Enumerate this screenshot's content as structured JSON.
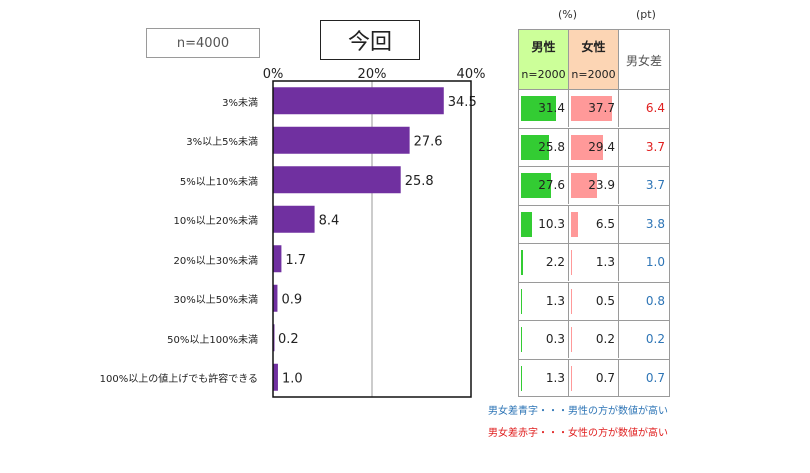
{
  "sample_label": "n=4000",
  "title": "今回",
  "chart_data": {
    "type": "bar",
    "orientation": "horizontal",
    "categories": [
      "3%未満",
      "3%以上5%未満",
      "5%以上10%未満",
      "10%以上20%未満",
      "20%以上30%未満",
      "30%以上50%未満",
      "50%以上100%未満",
      "100%以上の値上げでも許容できる"
    ],
    "values": [
      34.5,
      27.6,
      25.8,
      8.4,
      1.7,
      0.9,
      0.2,
      1.0
    ],
    "value_labels": [
      "34.5",
      "27.6",
      "25.8",
      "8.4",
      "1.7",
      "0.9",
      "0.2",
      "1.0"
    ],
    "xlim": [
      0,
      40
    ],
    "xticks": [
      {
        "value": 0,
        "label": "0%"
      },
      {
        "value": 20,
        "label": "20%"
      },
      {
        "value": 40,
        "label": "40%"
      }
    ],
    "bar_color": "#7030a0",
    "grid": true
  },
  "table": {
    "unit_pct": "(%)",
    "unit_pt": "(pt)",
    "headers": {
      "male": {
        "label": "男性",
        "n": "n=2000",
        "color": "#ccff99"
      },
      "female": {
        "label": "女性",
        "n": "n=2000",
        "color": "#fcd5b4"
      },
      "diff": {
        "label": "男女差"
      }
    },
    "rows": [
      {
        "male": 31.4,
        "male_text": "31.4",
        "female": 37.7,
        "female_text": "37.7",
        "diff": "6.4",
        "diff_sign": "red"
      },
      {
        "male": 25.8,
        "male_text": "25.8",
        "female": 29.4,
        "female_text": "29.4",
        "diff": "3.7",
        "diff_sign": "red"
      },
      {
        "male": 27.6,
        "male_text": "27.6",
        "female": 23.9,
        "female_text": "23.9",
        "diff": "3.7",
        "diff_sign": "blue"
      },
      {
        "male": 10.3,
        "male_text": "10.3",
        "female": 6.5,
        "female_text": "6.5",
        "diff": "3.8",
        "diff_sign": "blue"
      },
      {
        "male": 2.2,
        "male_text": "2.2",
        "female": 1.3,
        "female_text": "1.3",
        "diff": "1.0",
        "diff_sign": "blue"
      },
      {
        "male": 1.3,
        "male_text": "1.3",
        "female": 0.5,
        "female_text": "0.5",
        "diff": "0.8",
        "diff_sign": "blue"
      },
      {
        "male": 0.3,
        "male_text": "0.3",
        "female": 0.2,
        "female_text": "0.2",
        "diff": "0.2",
        "diff_sign": "blue"
      },
      {
        "male": 1.3,
        "male_text": "1.3",
        "female": 0.7,
        "female_text": "0.7",
        "diff": "0.7",
        "diff_sign": "blue"
      }
    ],
    "minibar_max": 40,
    "colors": {
      "male_bar": "#33cc33",
      "female_bar": "#ff9999",
      "blue": "#2e75b6",
      "red": "#e02020"
    }
  },
  "notes": {
    "blue": "男女差青字・・・男性の方が数値が高い",
    "red": "男女差赤字・・・女性の方が数値が高い"
  }
}
